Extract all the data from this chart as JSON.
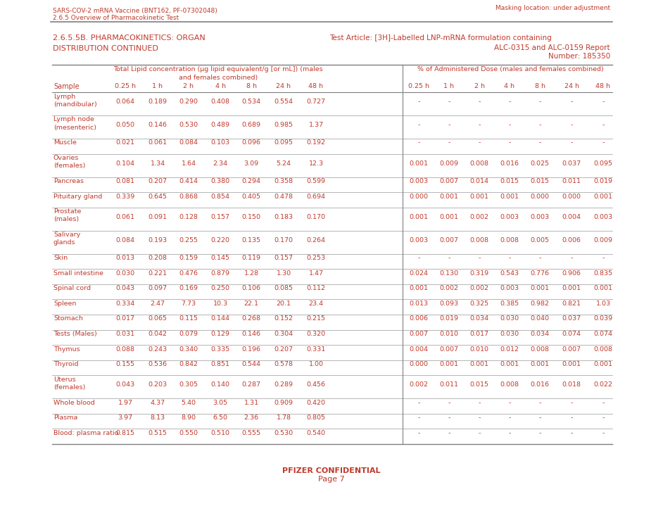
{
  "header_left_line1": "SARS-COV-2 mRNA Vaccine (BNT162, PF-07302048)",
  "header_left_line2": "2.6.5 Overview of Pharmacokinetic Test",
  "header_right": "Masking location: under adjustment",
  "section_left_line1": "2.6.5.5B. PHARMACOKINETICS: ORGAN",
  "section_left_line2": "DISTRIBUTION CONTINUED",
  "section_right_line1": "Test Article: [3H]-Labelled LNP-mRNA formulation containing",
  "section_right_line2": "ALC-0315 and ALC-0159 Report",
  "section_right_line3": "Number: 185350",
  "time_headers": [
    "0.25 h",
    "1 h",
    "2 h",
    "4 h",
    "8 h",
    "24 h",
    "48 h"
  ],
  "footer_line1": "PFIZER CONFIDENTIAL",
  "footer_line2": "Page 7",
  "text_color": "#c0392b",
  "bg_color": "#ffffff",
  "line_color": "#7f7f7f",
  "rows": [
    {
      "sample": "Lymph\n(mandibular)",
      "tlc": [
        "0.064",
        "0.189",
        "0.290",
        "0.408",
        "0.534",
        "0.554",
        "0.727"
      ],
      "pct": [
        "-",
        "-",
        "-",
        "-",
        "-",
        "-",
        "-"
      ]
    },
    {
      "sample": "Lymph node\n(mesenteric)",
      "tlc": [
        "0.050",
        "0.146",
        "0.530",
        "0.489",
        "0.689",
        "0.985",
        "1.37"
      ],
      "pct": [
        "-",
        "-",
        "-",
        "-",
        "-",
        "-",
        "-"
      ]
    },
    {
      "sample": "Muscle",
      "tlc": [
        "0.021",
        "0.061",
        "0.084",
        "0.103",
        "0.096",
        "0.095",
        "0.192"
      ],
      "pct": [
        "-",
        "-",
        "-",
        "-",
        "-",
        "-",
        "-"
      ]
    },
    {
      "sample": "Ovaries\n(females)",
      "tlc": [
        "0.104",
        "1.34",
        "1.64",
        "2.34",
        "3.09",
        "5.24",
        "12.3"
      ],
      "pct": [
        "0.001",
        "0.009",
        "0.008",
        "0.016",
        "0.025",
        "0.037",
        "0.095"
      ]
    },
    {
      "sample": "Pancreas",
      "tlc": [
        "0.081",
        "0.207",
        "0.414",
        "0.380",
        "0.294",
        "0.358",
        "0.599"
      ],
      "pct": [
        "0.003",
        "0.007",
        "0.014",
        "0.015",
        "0.015",
        "0.011",
        "0.019"
      ]
    },
    {
      "sample": "Pituitary gland",
      "tlc": [
        "0.339",
        "0.645",
        "0.868",
        "0.854",
        "0.405",
        "0.478",
        "0.694"
      ],
      "pct": [
        "0.000",
        "0.001",
        "0.001",
        "0.001",
        "0.000",
        "0.000",
        "0.001"
      ]
    },
    {
      "sample": "Prostate\n(males)",
      "tlc": [
        "0.061",
        "0.091",
        "0.128",
        "0.157",
        "0.150",
        "0.183",
        "0.170"
      ],
      "pct": [
        "0.001",
        "0.001",
        "0.002",
        "0.003",
        "0.003",
        "0.004",
        "0.003"
      ]
    },
    {
      "sample": "Salivary\nglands",
      "tlc": [
        "0.084",
        "0.193",
        "0.255",
        "0.220",
        "0.135",
        "0.170",
        "0.264"
      ],
      "pct": [
        "0.003",
        "0.007",
        "0.008",
        "0.008",
        "0.005",
        "0.006",
        "0.009"
      ]
    },
    {
      "sample": "Skin",
      "tlc": [
        "0.013",
        "0.208",
        "0.159",
        "0.145",
        "0.119",
        "0.157",
        "0.253"
      ],
      "pct": [
        "-",
        "-",
        "-",
        "-",
        "-",
        "-",
        "-"
      ]
    },
    {
      "sample": "Small intestine",
      "tlc": [
        "0.030",
        "0.221",
        "0.476",
        "0.879",
        "1.28",
        "1.30",
        "1.47"
      ],
      "pct": [
        "0.024",
        "0.130",
        "0.319",
        "0.543",
        "0.776",
        "0.906",
        "0.835"
      ]
    },
    {
      "sample": "Spinal cord",
      "tlc": [
        "0.043",
        "0.097",
        "0.169",
        "0.250",
        "0.106",
        "0.085",
        "0.112"
      ],
      "pct": [
        "0.001",
        "0.002",
        "0.002",
        "0.003",
        "0.001",
        "0.001",
        "0.001"
      ]
    },
    {
      "sample": "Spleen",
      "tlc": [
        "0.334",
        "2.47",
        "7.73",
        "10.3",
        "22.1",
        "20.1",
        "23.4"
      ],
      "pct": [
        "0.013",
        "0.093",
        "0.325",
        "0.385",
        "0.982",
        "0.821",
        "1.03"
      ]
    },
    {
      "sample": "Stomach",
      "tlc": [
        "0.017",
        "0.065",
        "0.115",
        "0.144",
        "0.268",
        "0.152",
        "0.215"
      ],
      "pct": [
        "0.006",
        "0.019",
        "0.034",
        "0.030",
        "0.040",
        "0.037",
        "0.039"
      ]
    },
    {
      "sample": "Tests (Males)",
      "tlc": [
        "0.031",
        "0.042",
        "0.079",
        "0.129",
        "0.146",
        "0.304",
        "0.320"
      ],
      "pct": [
        "0.007",
        "0.010",
        "0.017",
        "0.030",
        "0.034",
        "0.074",
        "0.074"
      ]
    },
    {
      "sample": "Thymus",
      "tlc": [
        "0.088",
        "0.243",
        "0.340",
        "0.335",
        "0.196",
        "0.207",
        "0.331"
      ],
      "pct": [
        "0.004",
        "0.007",
        "0.010",
        "0.012",
        "0.008",
        "0.007",
        "0.008"
      ]
    },
    {
      "sample": "Thyroid",
      "tlc": [
        "0.155",
        "0.536",
        "0.842",
        "0.851",
        "0.544",
        "0.578",
        "1.00"
      ],
      "pct": [
        "0.000",
        "0.001",
        "0.001",
        "0.001",
        "0.001",
        "0.001",
        "0.001"
      ]
    },
    {
      "sample": "Uterus\n(females)",
      "tlc": [
        "0.043",
        "0.203",
        "0.305",
        "0.140",
        "0.287",
        "0.289",
        "0.456"
      ],
      "pct": [
        "0.002",
        "0.011",
        "0.015",
        "0.008",
        "0.016",
        "0.018",
        "0.022"
      ]
    },
    {
      "sample": "Whole blood",
      "tlc": [
        "1.97",
        "4.37",
        "5.40",
        "3.05",
        "1.31",
        "0.909",
        "0.420"
      ],
      "pct": [
        "-",
        "-",
        "-",
        "-",
        "-",
        "-",
        "-"
      ]
    },
    {
      "sample": "Plasma",
      "tlc": [
        "3.97",
        "8.13",
        "8.90",
        "6.50",
        "2.36",
        "1.78",
        "0.805"
      ],
      "pct": [
        "-",
        "-",
        "-",
        "-",
        "-",
        "-",
        "-"
      ]
    },
    {
      "sample": "Blood: plasma ratio",
      "tlc": [
        "0.815",
        "0.515",
        "0.550",
        "0.510",
        "0.555",
        "0.530",
        "0.540"
      ],
      "pct": [
        "-",
        "-",
        "-",
        "-",
        "-",
        "-",
        "-"
      ]
    }
  ]
}
